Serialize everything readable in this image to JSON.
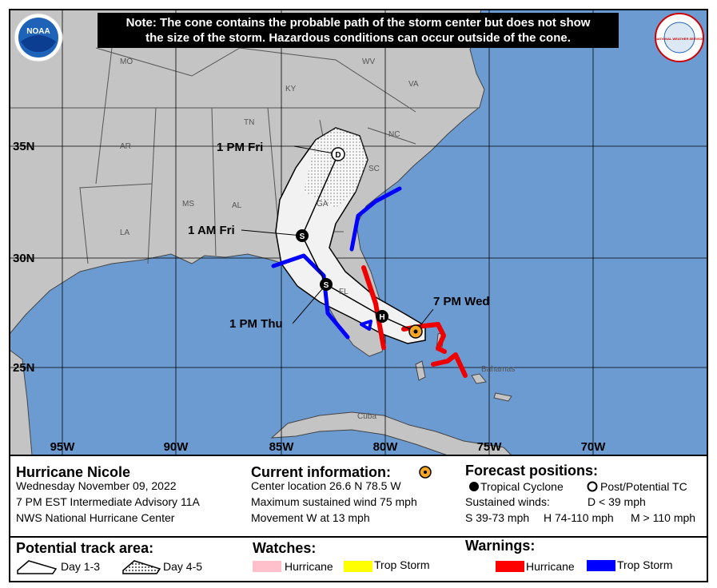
{
  "note": [
    "Note: The cone contains the probable path of the storm center but does not show",
    "the size of the storm. Hazardous conditions can occur outside of the cone."
  ],
  "logos": {
    "noaa": "NOAA",
    "nws": "NATIONAL WEATHER SERVICE"
  },
  "map": {
    "states": [
      "MO",
      "KY",
      "WV",
      "VA",
      "TN",
      "NC",
      "AR",
      "SC",
      "MS",
      "AL",
      "GA",
      "LA",
      "FL"
    ],
    "places": [
      "Bahamas",
      "Cuba"
    ],
    "latitudes": [
      "35N",
      "30N",
      "25N"
    ],
    "longitudes": [
      "95W",
      "90W",
      "85W",
      "80W",
      "75W",
      "70W"
    ],
    "track_labels": [
      "1 PM Fri",
      "1 AM Fri",
      "1 PM Thu",
      "7 PM Wed"
    ],
    "markers": [
      "D",
      "S",
      "S",
      "H"
    ]
  },
  "storm": {
    "name": "Hurricane Nicole",
    "date": "Wednesday November 09, 2022",
    "advisory": "7 PM EST Intermediate Advisory 11A",
    "center": "NWS National Hurricane Center"
  },
  "current": {
    "heading": "Current information:",
    "location": "Center location 26.6 N 78.5 W",
    "wind": "Maximum sustained wind 75 mph",
    "movement": "Movement W at 13 mph"
  },
  "forecast": {
    "heading": "Forecast positions:",
    "tropical": "Tropical Cyclone",
    "post": "Post/Potential TC",
    "winds": "Sustained winds:",
    "d": "D < 39 mph",
    "s": "S 39-73 mph",
    "h": "H 74-110 mph",
    "m": "M > 110 mph"
  },
  "track_area": {
    "heading": "Potential track area:",
    "day13": "Day 1-3",
    "day45": "Day 4-5"
  },
  "watches": {
    "heading": "Watches:",
    "hurricane": "Hurricane",
    "trop_storm": "Trop Storm"
  },
  "warnings": {
    "heading": "Warnings:",
    "hurricane": "Hurricane",
    "trop_storm": "Trop Storm"
  }
}
